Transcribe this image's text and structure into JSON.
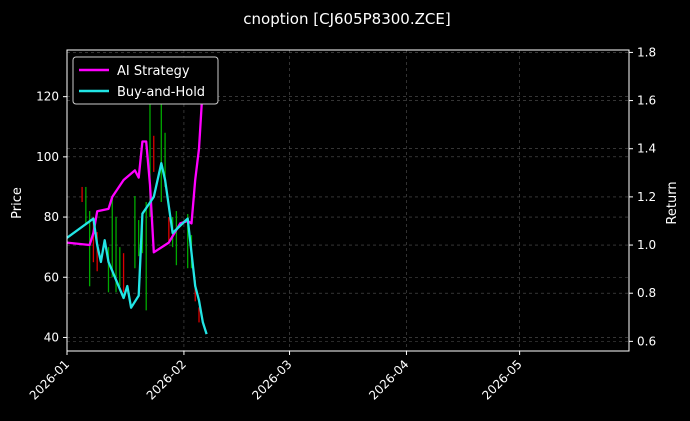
{
  "chart_data": {
    "type": "line",
    "title": "cnoption [CJ605P8300.ZCE]",
    "ylabel_left": "Price",
    "ylabel_right": "Return",
    "x_range": [
      "2026-01-01",
      "2026-05-30"
    ],
    "x_ticks": [
      "2026-01",
      "2026-02",
      "2026-03",
      "2026-04",
      "2026-05"
    ],
    "x_tick_dates": [
      "2026-01-01",
      "2026-02-01",
      "2026-03-01",
      "2026-04-01",
      "2026-05-01"
    ],
    "ylim_left": [
      35.5,
      135.5
    ],
    "yticks_left": [
      40,
      60,
      80,
      100,
      120
    ],
    "ylim_right": [
      0.56,
      1.81
    ],
    "yticks_right": [
      0.6,
      0.8,
      1.0,
      1.2,
      1.4,
      1.6,
      1.8
    ],
    "grid": true,
    "legend_position": "top-left",
    "colors": {
      "up": "#00aa00",
      "down": "#dd0000",
      "ai": "#ff00ff",
      "bh": "#22e5e5",
      "background": "#000000"
    },
    "candles": [
      {
        "date": "2026-01-05",
        "high": 90,
        "low": 85,
        "dir": "down"
      },
      {
        "date": "2026-01-06",
        "high": 90,
        "low": 78,
        "dir": "up"
      },
      {
        "date": "2026-01-07",
        "high": 82,
        "low": 57,
        "dir": "up"
      },
      {
        "date": "2026-01-08",
        "high": 80,
        "low": 65,
        "dir": "down"
      },
      {
        "date": "2026-01-09",
        "high": 75,
        "low": 62,
        "dir": "down"
      },
      {
        "date": "2026-01-12",
        "high": 70,
        "low": 55,
        "dir": "up"
      },
      {
        "date": "2026-01-13",
        "high": 87,
        "low": 60,
        "dir": "up"
      },
      {
        "date": "2026-01-14",
        "high": 80,
        "low": 55,
        "dir": "up"
      },
      {
        "date": "2026-01-15",
        "high": 70,
        "low": 57,
        "dir": "up"
      },
      {
        "date": "2026-01-16",
        "high": 68,
        "low": 55,
        "dir": "down"
      },
      {
        "date": "2026-01-19",
        "high": 87,
        "low": 63,
        "dir": "up"
      },
      {
        "date": "2026-01-20",
        "high": 79,
        "low": 67,
        "dir": "up"
      },
      {
        "date": "2026-01-21",
        "high": 80,
        "low": 68,
        "dir": "up"
      },
      {
        "date": "2026-01-22",
        "high": 85,
        "low": 49,
        "dir": "up"
      },
      {
        "date": "2026-01-23",
        "high": 120,
        "low": 80,
        "dir": "up"
      },
      {
        "date": "2026-01-24",
        "high": 107,
        "low": 95,
        "dir": "down"
      },
      {
        "date": "2026-01-26",
        "high": 120,
        "low": 85,
        "dir": "up"
      },
      {
        "date": "2026-01-27",
        "high": 108,
        "low": 90,
        "dir": "up"
      },
      {
        "date": "2026-01-28",
        "high": 80,
        "low": 72,
        "dir": "down"
      },
      {
        "date": "2026-01-29",
        "high": 80,
        "low": 70,
        "dir": "up"
      },
      {
        "date": "2026-01-30",
        "high": 82,
        "low": 64,
        "dir": "up"
      },
      {
        "date": "2026-02-02",
        "high": 81,
        "low": 63,
        "dir": "up"
      },
      {
        "date": "2026-02-03",
        "high": 74,
        "low": 63,
        "dir": "up"
      },
      {
        "date": "2026-02-04",
        "high": 59,
        "low": 52,
        "dir": "down"
      },
      {
        "date": "2026-02-05",
        "high": 50,
        "low": 45,
        "dir": "down"
      }
    ],
    "series": [
      {
        "name": "AI Strategy",
        "color": "#ff00ff",
        "points": [
          [
            "2026-01-01",
            1.01
          ],
          [
            "2026-01-07",
            1.0
          ],
          [
            "2026-01-08",
            1.05
          ],
          [
            "2026-01-09",
            1.14
          ],
          [
            "2026-01-12",
            1.15
          ],
          [
            "2026-01-13",
            1.2
          ],
          [
            "2026-01-16",
            1.27
          ],
          [
            "2026-01-19",
            1.31
          ],
          [
            "2026-01-20",
            1.28
          ],
          [
            "2026-01-21",
            1.43
          ],
          [
            "2026-01-22",
            1.43
          ],
          [
            "2026-01-23",
            1.25
          ],
          [
            "2026-01-24",
            0.97
          ],
          [
            "2026-01-28",
            1.01
          ],
          [
            "2026-01-31",
            1.09
          ],
          [
            "2026-02-02",
            1.1
          ],
          [
            "2026-02-03",
            1.09
          ],
          [
            "2026-02-04",
            1.27
          ],
          [
            "2026-02-05",
            1.4
          ],
          [
            "2026-02-06",
            1.66
          ]
        ]
      },
      {
        "name": "Buy-and-Hold",
        "color": "#22e5e5",
        "points": [
          [
            "2026-01-01",
            1.03
          ],
          [
            "2026-01-08",
            1.11
          ],
          [
            "2026-01-09",
            1.0
          ],
          [
            "2026-01-10",
            0.93
          ],
          [
            "2026-01-11",
            1.02
          ],
          [
            "2026-01-12",
            0.93
          ],
          [
            "2026-01-16",
            0.78
          ],
          [
            "2026-01-17",
            0.83
          ],
          [
            "2026-01-18",
            0.74
          ],
          [
            "2026-01-20",
            0.79
          ],
          [
            "2026-01-21",
            1.13
          ],
          [
            "2026-01-24",
            1.2
          ],
          [
            "2026-01-26",
            1.34
          ],
          [
            "2026-01-27",
            1.27
          ],
          [
            "2026-01-29",
            1.05
          ],
          [
            "2026-02-02",
            1.11
          ],
          [
            "2026-02-04",
            0.83
          ],
          [
            "2026-02-05",
            0.77
          ],
          [
            "2026-02-06",
            0.68
          ],
          [
            "2026-02-07",
            0.63
          ]
        ]
      }
    ]
  }
}
